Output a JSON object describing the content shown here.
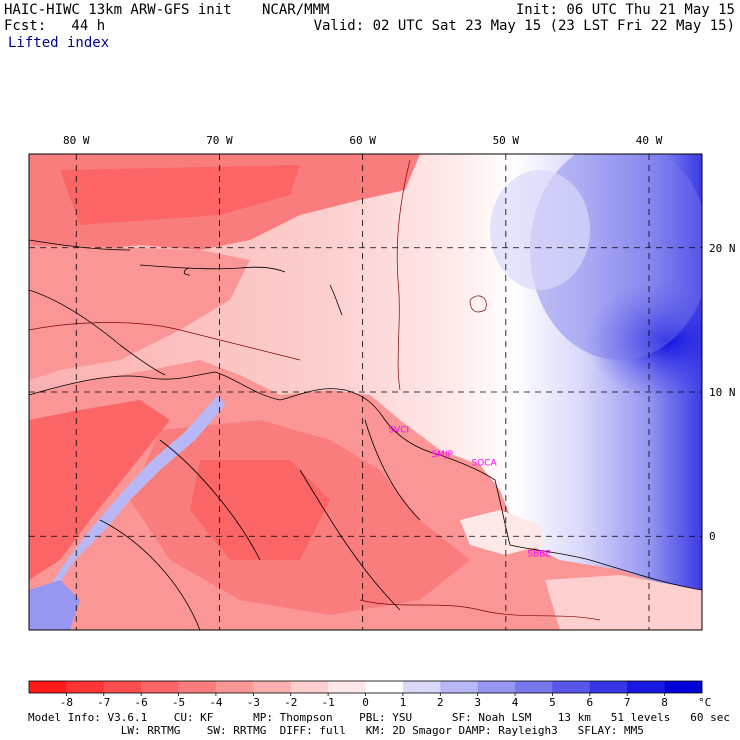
{
  "header": {
    "model": "HAIC-HIWC 13km ARW-GFS init",
    "org": "NCAR/MMM",
    "init": "Init: 06 UTC Thu 21 May 15",
    "fcst": "Fcst:   44 h",
    "valid": "Valid: 02 UTC Sat 23 May 15 (23 LST Fri 22 May 15)",
    "variable": "Lifted index"
  },
  "map": {
    "lon_labels": [
      {
        "value": -80,
        "text": "80 W"
      },
      {
        "value": -70,
        "text": "70 W"
      },
      {
        "value": -60,
        "text": "60 W"
      },
      {
        "value": -50,
        "text": "50 W"
      },
      {
        "value": -40,
        "text": "40 W"
      }
    ],
    "lat_labels": [
      {
        "value": 20,
        "text": "20 N"
      },
      {
        "value": 10,
        "text": "10 N"
      },
      {
        "value": 0,
        "text": "0"
      }
    ],
    "lon_range": [
      -83.3,
      -36.3
    ],
    "lat_range": [
      -6.5,
      26.5
    ],
    "stations": [
      {
        "name": "SVCI",
        "lon": -58.2,
        "lat": 7.2
      },
      {
        "name": "SMJP",
        "lon": -55.2,
        "lat": 5.5
      },
      {
        "name": "SOCA",
        "lon": -52.4,
        "lat": 4.9
      },
      {
        "name": "SBBE",
        "lon": -48.5,
        "lat": -1.4
      }
    ]
  },
  "colorbar": {
    "labels": [
      "-8",
      "-7",
      "-6",
      "-5",
      "-4",
      "-3",
      "-2",
      "-1",
      "0",
      "1",
      "2",
      "3",
      "4",
      "5",
      "6",
      "7",
      "8"
    ],
    "unit": "°C",
    "colors": [
      "#ff1a1a",
      "#ff3434",
      "#fc4e4e",
      "#fb6565",
      "#fa7d7d",
      "#fa9696",
      "#fbb0b0",
      "#fdcfcf",
      "#ffe8e8",
      "#ffffff",
      "#d9d9fb",
      "#b8b8f7",
      "#9797f2",
      "#7878ec",
      "#5656e8",
      "#3636e4",
      "#1818e0",
      "#0000d8"
    ]
  },
  "model_info": {
    "line1": "Model Info: V3.6.1    CU: KF      MP: Thompson    PBL: YSU      SF: Noah LSM    13 km   51 levels   60 sec",
    "line2": "              LW: RRTMG    SW: RRTMG  DIFF: full   KM: 2D Smagor DAMP: Rayleigh3   SFLAY: MM5"
  }
}
